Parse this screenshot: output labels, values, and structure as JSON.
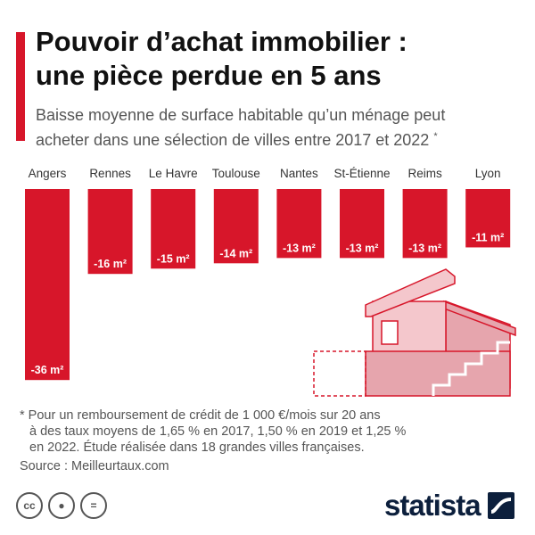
{
  "header": {
    "title_line1": "Pouvoir d’achat immobilier :",
    "title_line2": "une pièce perdue en 5 ans",
    "subtitle_line1": "Baisse moyenne de surface habitable qu’un ménage peut",
    "subtitle_line2": "acheter dans une sélection de villes entre 2017 et 2022",
    "subtitle_marker": "*"
  },
  "chart_data": {
    "type": "bar",
    "orientation": "vertical-down",
    "categories": [
      "Angers",
      "Rennes",
      "Le Havre",
      "Toulouse",
      "Nantes",
      "St-Étienne",
      "Reims",
      "Lyon"
    ],
    "values": [
      -36,
      -16,
      -15,
      -14,
      -13,
      -13,
      -13,
      -11
    ],
    "value_labels": [
      "-36 m²",
      "-16 m²",
      "-15 m²",
      "-14 m²",
      "-13 m²",
      "-13 m²",
      "-13 m²",
      "-11 m²"
    ],
    "unit": "m²",
    "grid": false,
    "legend": "none"
  },
  "footnote": {
    "line1": "* Pour un remboursement de crédit de 1 000 €/mois sur 20 ans",
    "line2": "à des taux moyens de 1,65 % en 2017, 1,50 % en 2019 et 1,25 %",
    "line3": "en 2022. Étude réalisée dans 18 grandes villes françaises."
  },
  "source": "Source : Meilleurtaux.com",
  "license_icons": [
    "cc-icon",
    "person-icon",
    "equal-icon"
  ],
  "brand": {
    "name": "statista",
    "colors": {
      "bar": "#d7162a",
      "house_fill": "#f4c7cc",
      "house_dark": "#e6a5ad",
      "house_stroke": "#d7162a",
      "logo": "#0c1f3c"
    }
  }
}
